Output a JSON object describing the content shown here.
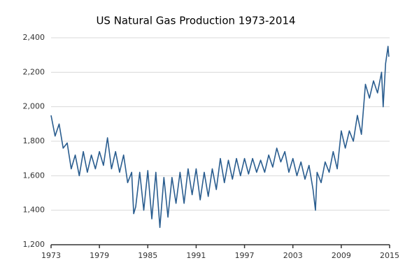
{
  "chart_data": {
    "type": "line",
    "title": "US Natural Gas Production 1973-2014",
    "x": [
      1973,
      1973.5,
      1974,
      1974.5,
      1975,
      1975.5,
      1976,
      1976.5,
      1977,
      1977.5,
      1978,
      1978.5,
      1979,
      1979.5,
      1980,
      1980.5,
      1981,
      1981.5,
      1982,
      1982.5,
      1983,
      1983.25,
      1983.5,
      1984,
      1984.5,
      1985,
      1985.5,
      1986,
      1986.5,
      1987,
      1987.5,
      1988,
      1988.5,
      1989,
      1989.5,
      1990,
      1990.5,
      1991,
      1991.5,
      1992,
      1992.5,
      1993,
      1993.5,
      1994,
      1994.5,
      1995,
      1995.5,
      1996,
      1996.5,
      1997,
      1997.5,
      1998,
      1998.5,
      1999,
      1999.5,
      2000,
      2000.5,
      2001,
      2001.5,
      2002,
      2002.5,
      2003,
      2003.5,
      2004,
      2004.5,
      2005,
      2005.5,
      2005.8,
      2006,
      2006.5,
      2007,
      2007.5,
      2008,
      2008.5,
      2009,
      2009.5,
      2010,
      2010.5,
      2011,
      2011.5,
      2012,
      2012.5,
      2013,
      2013.5,
      2014,
      2014.2,
      2014.5,
      2014.8,
      2014.9
    ],
    "series": [
      {
        "name": "US Natural Gas Production",
        "color": "#2a5d8f",
        "values": [
          1950,
          1830,
          1900,
          1760,
          1790,
          1640,
          1720,
          1600,
          1740,
          1620,
          1720,
          1640,
          1740,
          1660,
          1820,
          1640,
          1740,
          1620,
          1720,
          1560,
          1620,
          1380,
          1420,
          1620,
          1400,
          1630,
          1350,
          1620,
          1300,
          1590,
          1360,
          1590,
          1440,
          1620,
          1440,
          1640,
          1490,
          1640,
          1460,
          1620,
          1480,
          1640,
          1520,
          1700,
          1560,
          1690,
          1580,
          1700,
          1600,
          1700,
          1610,
          1700,
          1620,
          1690,
          1620,
          1720,
          1650,
          1760,
          1680,
          1740,
          1620,
          1700,
          1600,
          1680,
          1580,
          1660,
          1520,
          1400,
          1620,
          1560,
          1680,
          1620,
          1740,
          1640,
          1860,
          1760,
          1860,
          1800,
          1950,
          1840,
          2130,
          2050,
          2150,
          2080,
          2200,
          2000,
          2250,
          2350,
          2290
        ]
      }
    ],
    "xlim": [
      1973,
      2015
    ],
    "xticks": [
      1973,
      1979,
      1985,
      1991,
      1997,
      2003,
      2009,
      2015
    ],
    "ylim": [
      1200,
      2400
    ],
    "yticks": [
      {
        "value": 1200,
        "label": "1,200"
      },
      {
        "value": 1400,
        "label": "1,400"
      },
      {
        "value": 1600,
        "label": "1,600"
      },
      {
        "value": 1800,
        "label": "1,800"
      },
      {
        "value": 2000,
        "label": "2,000"
      },
      {
        "value": 2200,
        "label": "2,200"
      },
      {
        "value": 2400,
        "label": "2,400"
      }
    ],
    "grid": true
  }
}
